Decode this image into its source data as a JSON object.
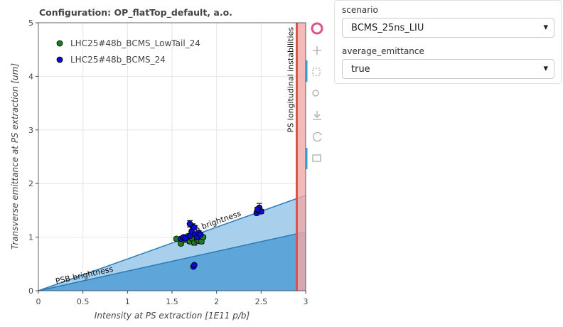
{
  "chart_data": {
    "type": "scatter",
    "title": "Configuration: OP_flatTop_default, a.o.",
    "x_label": "Intensity at PS extraction [1E11 p/b]",
    "y_label": "Transverse emittance at PS extraction [um]",
    "xlim": [
      0,
      3
    ],
    "ylim": [
      0,
      5
    ],
    "xticks": [
      0,
      0.5,
      1,
      1.5,
      2,
      2.5,
      3
    ],
    "yticks": [
      0,
      1,
      2,
      3,
      4,
      5
    ],
    "grid": true,
    "legend": "top-left",
    "series": [
      {
        "name": "LHC25#48b_BCMS_LowTail_24",
        "color": "#1e7d1e",
        "x": [
          1.55,
          1.6,
          1.65,
          1.7,
          1.72,
          1.75,
          1.78,
          1.8,
          1.83,
          1.85,
          1.68,
          1.76
        ],
        "y": [
          0.97,
          0.88,
          0.95,
          0.92,
          0.98,
          0.9,
          0.95,
          0.93,
          0.92,
          1.0,
          1.02,
          1.05
        ],
        "errors": [
          0.03,
          0.03,
          0.03,
          0.04,
          0.03,
          0.05,
          0.03,
          0.03,
          0.04,
          0.03,
          0.03,
          0.03
        ]
      },
      {
        "name": "LHC25#48b_BCMS_24",
        "color": "#0a0ad0",
        "x": [
          1.6,
          1.63,
          1.65,
          1.7,
          1.72,
          1.73,
          1.75,
          1.76,
          1.78,
          1.8,
          1.82,
          1.7,
          1.74,
          1.75,
          2.45,
          2.47,
          2.48,
          2.5,
          2.46
        ],
        "y": [
          0.97,
          1.0,
          0.98,
          1.02,
          1.1,
          1.2,
          1.18,
          1.05,
          1.0,
          1.08,
          1.05,
          1.25,
          0.45,
          0.48,
          1.45,
          1.5,
          1.55,
          1.48,
          1.52
        ],
        "errors": [
          0.03,
          0.03,
          0.03,
          0.04,
          0.04,
          0.05,
          0.04,
          0.03,
          0.03,
          0.04,
          0.03,
          0.06,
          0.02,
          0.02,
          0.04,
          0.05,
          0.08,
          0.04,
          0.04
        ]
      }
    ],
    "brightness_limits": [
      {
        "label": "PSB brightness",
        "y_at_xmax": 1.1,
        "color": "#5aa2d8"
      },
      {
        "label": "PS brightness",
        "y_at_xmax": 1.78,
        "color": "#a3cdec"
      }
    ],
    "instability": {
      "label": "PS longitudinal instabilities",
      "x": 2.9,
      "color": "#d9534f"
    }
  },
  "widgets": [
    {
      "label": "scenario",
      "value": "BCMS_25ns_LIU"
    },
    {
      "label": "average_emittance",
      "value": "true"
    }
  ]
}
